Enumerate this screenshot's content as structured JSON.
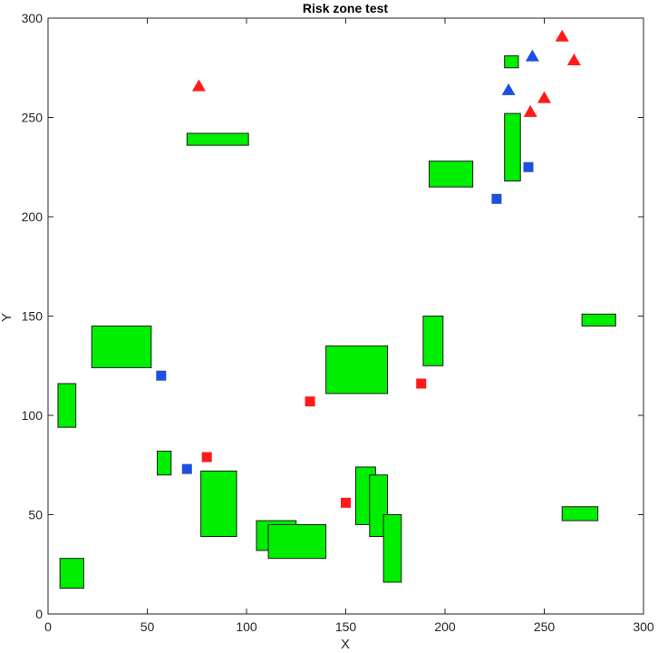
{
  "chart_data": {
    "type": "scatter",
    "title": "Risk zone test",
    "xlabel": "X",
    "ylabel": "Y",
    "xlim": [
      0,
      300
    ],
    "ylim": [
      0,
      300
    ],
    "xticks": [
      0,
      50,
      100,
      150,
      200,
      250,
      300
    ],
    "yticks": [
      0,
      50,
      100,
      150,
      200,
      250,
      300
    ],
    "grid": false,
    "colors": {
      "rect_fill": "#00ee00",
      "rect_edge": "#1a1a1a",
      "red": "#ff1a1a",
      "blue": "#1f4fe0",
      "axis": "#262626"
    },
    "rectangles": [
      {
        "x": 70,
        "y": 236,
        "w": 31,
        "h": 6
      },
      {
        "x": 230,
        "y": 218,
        "w": 8,
        "h": 34
      },
      {
        "x": 192,
        "y": 215,
        "w": 22,
        "h": 13
      },
      {
        "x": 230,
        "y": 275,
        "w": 7,
        "h": 6
      },
      {
        "x": 22,
        "y": 124,
        "w": 30,
        "h": 21
      },
      {
        "x": 140,
        "y": 111,
        "w": 31,
        "h": 24
      },
      {
        "x": 189,
        "y": 125,
        "w": 10,
        "h": 25
      },
      {
        "x": 269,
        "y": 145,
        "w": 17,
        "h": 6
      },
      {
        "x": 5,
        "y": 94,
        "w": 9,
        "h": 22
      },
      {
        "x": 55,
        "y": 70,
        "w": 7,
        "h": 12
      },
      {
        "x": 77,
        "y": 39,
        "w": 18,
        "h": 33
      },
      {
        "x": 105,
        "y": 32,
        "w": 20,
        "h": 15
      },
      {
        "x": 111,
        "y": 28,
        "w": 29,
        "h": 17
      },
      {
        "x": 155,
        "y": 45,
        "w": 10,
        "h": 29
      },
      {
        "x": 162,
        "y": 39,
        "w": 9,
        "h": 31
      },
      {
        "x": 169,
        "y": 16,
        "w": 9,
        "h": 34
      },
      {
        "x": 259,
        "y": 47,
        "w": 18,
        "h": 7
      },
      {
        "x": 6,
        "y": 13,
        "w": 12,
        "h": 15
      }
    ],
    "red_squares": [
      [
        132,
        107
      ],
      [
        188,
        116
      ],
      [
        80,
        79
      ],
      [
        150,
        56
      ]
    ],
    "blue_squares": [
      [
        57,
        120
      ],
      [
        70,
        73
      ],
      [
        226,
        209
      ],
      [
        242,
        225
      ]
    ],
    "red_triangles": [
      [
        76,
        266
      ],
      [
        259,
        291
      ],
      [
        265,
        279
      ],
      [
        250,
        260
      ],
      [
        243,
        253
      ]
    ],
    "blue_triangles": [
      [
        244,
        281
      ],
      [
        232,
        264
      ]
    ]
  }
}
